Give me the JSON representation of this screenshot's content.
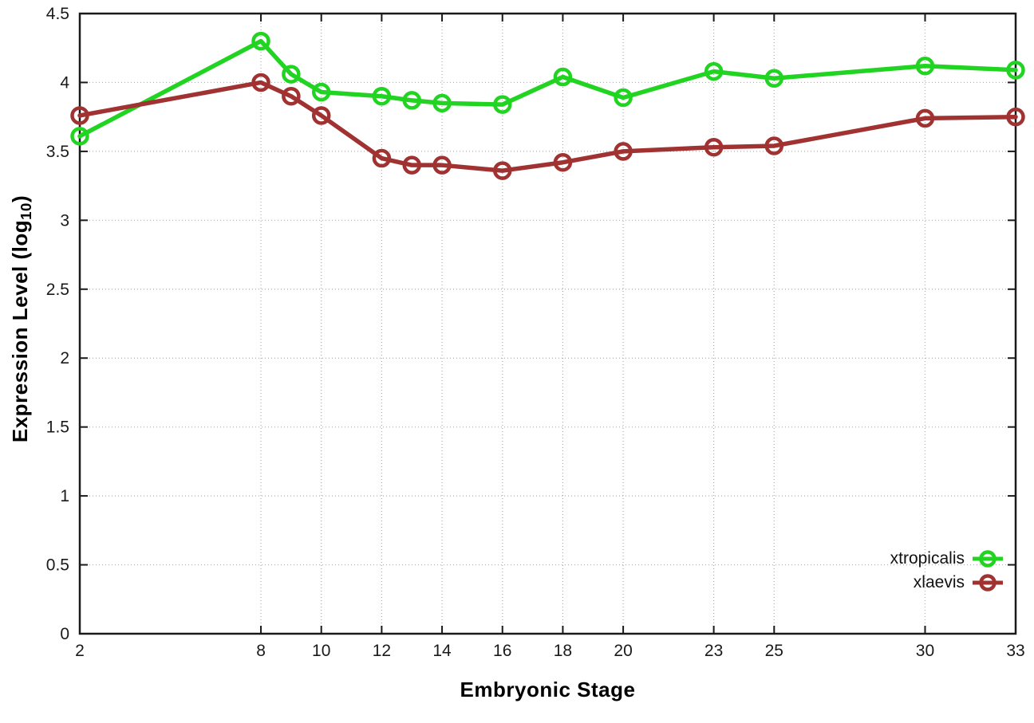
{
  "chart_data": {
    "type": "line",
    "title": "",
    "xlabel": "Embryonic Stage",
    "ylabel": {
      "pre": "Expression Level (log",
      "sub": "10",
      "post": ")"
    },
    "xlim": [
      2,
      33
    ],
    "ylim": [
      0,
      4.5
    ],
    "grid": true,
    "legend_position": "inside-bottom-right",
    "x": [
      2,
      8,
      9,
      10,
      12,
      13,
      14,
      16,
      18,
      20,
      23,
      25,
      30,
      33
    ],
    "x_ticks": [
      {
        "v": 2,
        "label": "2"
      },
      {
        "v": 8,
        "label": "8"
      },
      {
        "v": 10,
        "label": "10"
      },
      {
        "v": 12,
        "label": "12"
      },
      {
        "v": 14,
        "label": "14"
      },
      {
        "v": 16,
        "label": "16"
      },
      {
        "v": 18,
        "label": "18"
      },
      {
        "v": 20,
        "label": "20"
      },
      {
        "v": 23,
        "label": "23"
      },
      {
        "v": 25,
        "label": "25"
      },
      {
        "v": 30,
        "label": "30"
      },
      {
        "v": 33,
        "label": "33"
      }
    ],
    "y_ticks": [
      {
        "v": 0,
        "label": "0"
      },
      {
        "v": 0.5,
        "label": "0.5"
      },
      {
        "v": 1,
        "label": "1"
      },
      {
        "v": 1.5,
        "label": "1.5"
      },
      {
        "v": 2,
        "label": "2"
      },
      {
        "v": 2.5,
        "label": "2.5"
      },
      {
        "v": 3,
        "label": "3"
      },
      {
        "v": 3.5,
        "label": "3.5"
      },
      {
        "v": 4,
        "label": "4"
      },
      {
        "v": 4.5,
        "label": "4.5"
      }
    ],
    "series": [
      {
        "name": "xtropicalis",
        "color": "#21d421",
        "values": [
          3.61,
          4.3,
          4.06,
          3.93,
          3.9,
          3.87,
          3.85,
          3.84,
          4.04,
          3.89,
          4.08,
          4.03,
          4.12,
          4.09
        ]
      },
      {
        "name": "xlaevis",
        "color": "#a03232",
        "values": [
          3.76,
          4.0,
          3.9,
          3.76,
          3.45,
          3.4,
          3.4,
          3.36,
          3.42,
          3.5,
          3.53,
          3.54,
          3.74,
          3.75
        ]
      }
    ],
    "colors": {
      "axis": "#1a1a1a",
      "grid": "#aeaeae",
      "tick_text": "#1a1a1a"
    }
  }
}
